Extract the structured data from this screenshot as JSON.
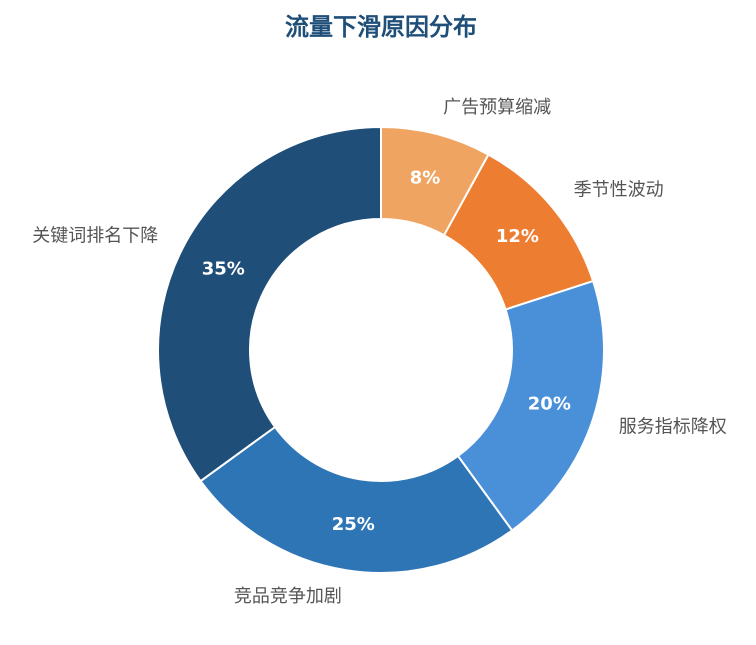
{
  "chart_data": {
    "type": "pie",
    "title": "流量下滑原因分布",
    "categories": [
      "广告预算缩减",
      "季节性波动",
      "服务指标降权",
      "竞品竞争加剧",
      "关键词排名下降"
    ],
    "values": [
      8,
      12,
      20,
      25,
      35
    ],
    "value_labels": [
      "8%",
      "12%",
      "20%",
      "25%",
      "35%"
    ],
    "colors": [
      "#f0a461",
      "#ed7d31",
      "#4a90d9",
      "#2e75b6",
      "#1f4e79"
    ]
  }
}
